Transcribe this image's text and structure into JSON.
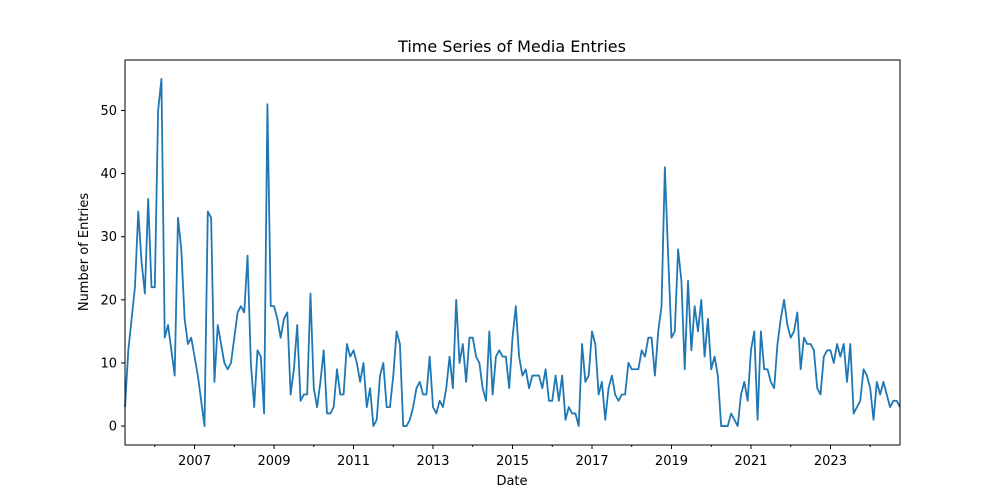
{
  "chart_data": {
    "type": "line",
    "title": "Time Series of Media Entries",
    "xlabel": "Date",
    "ylabel": "Number of Entries",
    "xlim": [
      "2005-04",
      "2024-10"
    ],
    "ylim": [
      -3,
      58
    ],
    "x_ticks": [
      "2007",
      "2009",
      "2011",
      "2013",
      "2015",
      "2017",
      "2019",
      "2021",
      "2023"
    ],
    "y_ticks": [
      "0",
      "10",
      "20",
      "30",
      "40",
      "50"
    ],
    "series": [
      {
        "color": "#1f77b4",
        "x": [
          "2005-04",
          "2005-05",
          "2005-06",
          "2005-07",
          "2005-08",
          "2005-09",
          "2005-10",
          "2005-11",
          "2005-12",
          "2006-01",
          "2006-02",
          "2006-03",
          "2006-04",
          "2006-05",
          "2006-06",
          "2006-07",
          "2006-08",
          "2006-09",
          "2006-10",
          "2006-11",
          "2006-12",
          "2007-01",
          "2007-02",
          "2007-03",
          "2007-04",
          "2007-05",
          "2007-06",
          "2007-07",
          "2007-08",
          "2007-09",
          "2007-10",
          "2007-11",
          "2007-12",
          "2008-01",
          "2008-02",
          "2008-03",
          "2008-04",
          "2008-05",
          "2008-06",
          "2008-07",
          "2008-08",
          "2008-09",
          "2008-10",
          "2008-11",
          "2008-12",
          "2009-01",
          "2009-02",
          "2009-03",
          "2009-04",
          "2009-05",
          "2009-06",
          "2009-07",
          "2009-08",
          "2009-09",
          "2009-10",
          "2009-11",
          "2009-12",
          "2010-01",
          "2010-02",
          "2010-03",
          "2010-04",
          "2010-05",
          "2010-06",
          "2010-07",
          "2010-08",
          "2010-09",
          "2010-10",
          "2010-11",
          "2010-12",
          "2011-01",
          "2011-02",
          "2011-03",
          "2011-04",
          "2011-05",
          "2011-06",
          "2011-07",
          "2011-08",
          "2011-09",
          "2011-10",
          "2011-11",
          "2011-12",
          "2012-01",
          "2012-02",
          "2012-03",
          "2012-04",
          "2012-05",
          "2012-06",
          "2012-07",
          "2012-08",
          "2012-09",
          "2012-10",
          "2012-11",
          "2012-12",
          "2013-01",
          "2013-02",
          "2013-03",
          "2013-04",
          "2013-05",
          "2013-06",
          "2013-07",
          "2013-08",
          "2013-09",
          "2013-10",
          "2013-11",
          "2013-12",
          "2014-01",
          "2014-02",
          "2014-03",
          "2014-04",
          "2014-05",
          "2014-06",
          "2014-07",
          "2014-08",
          "2014-09",
          "2014-10",
          "2014-11",
          "2014-12",
          "2015-01",
          "2015-02",
          "2015-03",
          "2015-04",
          "2015-05",
          "2015-06",
          "2015-07",
          "2015-08",
          "2015-09",
          "2015-10",
          "2015-11",
          "2015-12",
          "2016-01",
          "2016-02",
          "2016-03",
          "2016-04",
          "2016-05",
          "2016-06",
          "2016-07",
          "2016-08",
          "2016-09",
          "2016-10",
          "2016-11",
          "2016-12",
          "2017-01",
          "2017-02",
          "2017-03",
          "2017-04",
          "2017-05",
          "2017-06",
          "2017-07",
          "2017-08",
          "2017-09",
          "2017-10",
          "2017-11",
          "2017-12",
          "2018-01",
          "2018-02",
          "2018-03",
          "2018-04",
          "2018-05",
          "2018-06",
          "2018-07",
          "2018-08",
          "2018-09",
          "2018-10",
          "2018-11",
          "2018-12",
          "2019-01",
          "2019-02",
          "2019-03",
          "2019-04",
          "2019-05",
          "2019-06",
          "2019-07",
          "2019-08",
          "2019-09",
          "2019-10",
          "2019-11",
          "2019-12",
          "2020-01",
          "2020-02",
          "2020-03",
          "2020-04",
          "2020-05",
          "2020-06",
          "2020-07",
          "2020-08",
          "2020-09",
          "2020-10",
          "2020-11",
          "2020-12",
          "2021-01",
          "2021-02",
          "2021-03",
          "2021-04",
          "2021-05",
          "2021-06",
          "2021-07",
          "2021-08",
          "2021-09",
          "2021-10",
          "2021-11",
          "2021-12",
          "2022-01",
          "2022-02",
          "2022-03",
          "2022-04",
          "2022-05",
          "2022-06",
          "2022-07",
          "2022-08",
          "2022-09",
          "2022-10",
          "2022-11",
          "2022-12",
          "2023-01",
          "2023-02",
          "2023-03",
          "2023-04",
          "2023-05",
          "2023-06",
          "2023-07",
          "2023-08",
          "2023-09",
          "2023-10",
          "2023-11",
          "2023-12",
          "2024-01",
          "2024-02",
          "2024-03",
          "2024-04",
          "2024-05",
          "2024-06",
          "2024-07",
          "2024-08",
          "2024-09",
          "2024-10"
        ],
        "y": [
          3,
          12,
          17,
          22,
          34,
          26,
          21,
          36,
          22,
          22,
          50,
          55,
          14,
          16,
          12,
          8,
          33,
          28,
          17,
          13,
          14,
          11,
          8,
          4,
          0,
          34,
          33,
          7,
          16,
          13,
          10,
          9,
          10,
          14,
          18,
          19,
          18,
          27,
          10,
          3,
          12,
          11,
          2,
          51,
          19,
          19,
          17,
          14,
          17,
          18,
          5,
          9,
          16,
          4,
          5,
          5,
          21,
          6,
          3,
          7,
          12,
          2,
          2,
          3,
          9,
          5,
          5,
          13,
          11,
          12,
          10,
          7,
          10,
          3,
          6,
          0,
          1,
          8,
          10,
          3,
          3,
          8,
          15,
          13,
          0,
          0,
          1,
          3,
          6,
          7,
          5,
          5,
          11,
          3,
          2,
          4,
          3,
          6,
          11,
          6,
          20,
          10,
          13,
          7,
          14,
          14,
          11,
          10,
          6,
          4,
          15,
          5,
          11,
          12,
          11,
          11,
          6,
          14,
          19,
          11,
          8,
          9,
          6,
          8,
          8,
          8,
          6,
          9,
          4,
          4,
          8,
          4,
          8,
          1,
          3,
          2,
          2,
          0,
          13,
          7,
          8,
          15,
          13,
          5,
          7,
          1,
          6,
          8,
          5,
          4,
          5,
          5,
          10,
          9,
          9,
          9,
          12,
          11,
          14,
          14,
          8,
          15,
          19,
          41,
          27,
          14,
          15,
          28,
          23,
          9,
          23,
          12,
          19,
          15,
          20,
          11,
          17,
          9,
          11,
          8,
          0,
          0,
          0,
          2,
          1,
          0,
          5,
          7,
          4,
          12,
          15,
          1,
          15,
          9,
          9,
          7,
          6,
          13,
          17,
          20,
          16,
          14,
          15,
          18,
          9,
          14,
          13,
          13,
          12,
          6,
          5,
          11,
          12,
          12,
          10,
          13,
          11,
          13,
          7,
          13,
          2,
          3,
          4,
          9,
          8,
          6,
          1,
          7,
          5,
          7,
          5,
          3,
          4,
          4,
          3
        ]
      }
    ]
  }
}
